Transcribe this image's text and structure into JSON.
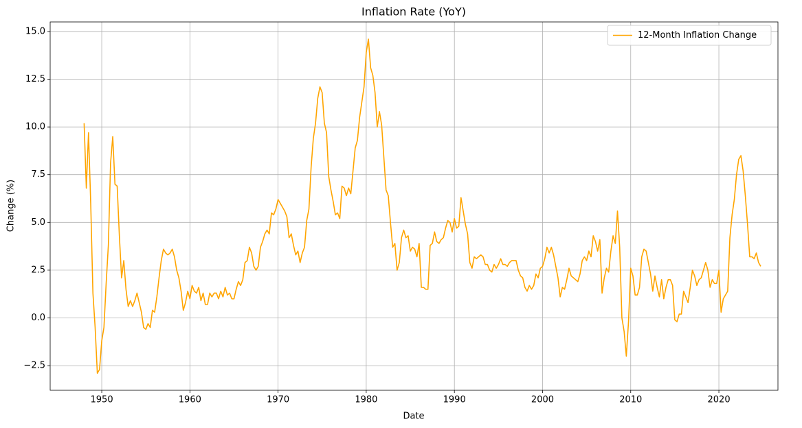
{
  "chart_data": {
    "type": "line",
    "title": "Inflation Rate (YoY)",
    "x_label": "Date",
    "y_label": "Change (%)",
    "xlim": [
      1944.15,
      2026.7
    ],
    "ylim": [
      -3.79,
      15.5
    ],
    "xticks": [
      1950,
      1960,
      1970,
      1980,
      1990,
      2000,
      2010,
      2020
    ],
    "yticks": [
      {
        "value": -2.5,
        "label": "−2.5"
      },
      {
        "value": 0,
        "label": "0.0"
      },
      2.5,
      {
        "value": 5,
        "label": "5.0"
      },
      7.5,
      {
        "value": 10,
        "label": "10.0"
      },
      12.5,
      {
        "value": 15,
        "label": "15.0"
      }
    ],
    "grid": true,
    "legend": "upper right",
    "x": [
      1948,
      1948.25,
      1948.5,
      1948.75,
      1949,
      1949.25,
      1949.5,
      1949.75,
      1950,
      1950.25,
      1950.5,
      1950.75,
      1951,
      1951.25,
      1951.5,
      1951.75,
      1952,
      1952.25,
      1952.5,
      1952.75,
      1953,
      1953.25,
      1953.5,
      1953.75,
      1954,
      1954.25,
      1954.5,
      1954.75,
      1955,
      1955.25,
      1955.5,
      1955.75,
      1956,
      1956.25,
      1956.5,
      1956.75,
      1957,
      1957.25,
      1957.5,
      1957.75,
      1958,
      1958.25,
      1958.5,
      1958.75,
      1959,
      1959.25,
      1959.5,
      1959.75,
      1960,
      1960.25,
      1960.5,
      1960.75,
      1961,
      1961.25,
      1961.5,
      1961.75,
      1962,
      1962.25,
      1962.5,
      1962.75,
      1963,
      1963.25,
      1963.5,
      1963.75,
      1964,
      1964.25,
      1964.5,
      1964.75,
      1965,
      1965.25,
      1965.5,
      1965.75,
      1966,
      1966.25,
      1966.5,
      1966.75,
      1967,
      1967.25,
      1967.5,
      1967.75,
      1968,
      1968.25,
      1968.5,
      1968.75,
      1969,
      1969.25,
      1969.5,
      1969.75,
      1970,
      1970.25,
      1970.5,
      1970.75,
      1971,
      1971.25,
      1971.5,
      1971.75,
      1972,
      1972.25,
      1972.5,
      1972.75,
      1973,
      1973.25,
      1973.5,
      1973.75,
      1974,
      1974.25,
      1974.5,
      1974.75,
      1975,
      1975.25,
      1975.5,
      1975.75,
      1976,
      1976.25,
      1976.5,
      1976.75,
      1977,
      1977.25,
      1977.5,
      1977.75,
      1978,
      1978.25,
      1978.5,
      1978.75,
      1979,
      1979.25,
      1979.5,
      1979.75,
      1980,
      1980.25,
      1980.5,
      1980.75,
      1981,
      1981.25,
      1981.5,
      1981.75,
      1982,
      1982.25,
      1982.5,
      1982.75,
      1983,
      1983.25,
      1983.5,
      1983.75,
      1984,
      1984.25,
      1984.5,
      1984.75,
      1985,
      1985.25,
      1985.5,
      1985.75,
      1986,
      1986.25,
      1986.5,
      1986.75,
      1987,
      1987.25,
      1987.5,
      1987.75,
      1988,
      1988.25,
      1988.5,
      1988.75,
      1989,
      1989.25,
      1989.5,
      1989.75,
      1990,
      1990.25,
      1990.5,
      1990.75,
      1991,
      1991.25,
      1991.5,
      1991.75,
      1992,
      1992.25,
      1992.5,
      1992.75,
      1993,
      1993.25,
      1993.5,
      1993.75,
      1994,
      1994.25,
      1994.5,
      1994.75,
      1995,
      1995.25,
      1995.5,
      1995.75,
      1996,
      1996.25,
      1996.5,
      1996.75,
      1997,
      1997.25,
      1997.5,
      1997.75,
      1998,
      1998.25,
      1998.5,
      1998.75,
      1999,
      1999.25,
      1999.5,
      1999.75,
      2000,
      2000.25,
      2000.5,
      2000.75,
      2001,
      2001.25,
      2001.5,
      2001.75,
      2002,
      2002.25,
      2002.5,
      2002.75,
      2003,
      2003.25,
      2003.5,
      2003.75,
      2004,
      2004.25,
      2004.5,
      2004.75,
      2005,
      2005.25,
      2005.5,
      2005.75,
      2006,
      2006.25,
      2006.5,
      2006.75,
      2007,
      2007.25,
      2007.5,
      2007.75,
      2008,
      2008.25,
      2008.5,
      2008.75,
      2009,
      2009.25,
      2009.5,
      2009.75,
      2010,
      2010.25,
      2010.5,
      2010.75,
      2011,
      2011.25,
      2011.5,
      2011.75,
      2012,
      2012.25,
      2012.5,
      2012.75,
      2013,
      2013.25,
      2013.5,
      2013.75,
      2014,
      2014.25,
      2014.5,
      2014.75,
      2015,
      2015.25,
      2015.5,
      2015.75,
      2016,
      2016.25,
      2016.5,
      2016.75,
      2017,
      2017.25,
      2017.5,
      2017.75,
      2018,
      2018.25,
      2018.5,
      2018.75,
      2019,
      2019.25,
      2019.5,
      2019.75,
      2020,
      2020.25,
      2020.5,
      2020.75,
      2021,
      2021.25,
      2021.5,
      2021.75,
      2022,
      2022.25,
      2022.5,
      2022.75,
      2023,
      2023.25,
      2023.5,
      2023.75,
      2024,
      2024.25,
      2024.5,
      2024.75
    ],
    "series": [
      {
        "name": "12-Month Inflation Change",
        "color": "#ffa500",
        "values": [
          10.2,
          6.8,
          9.7,
          6.0,
          1.3,
          -0.5,
          -2.9,
          -2.7,
          -1.2,
          -0.5,
          1.8,
          3.8,
          8.1,
          9.5,
          7.0,
          6.9,
          4.3,
          2.1,
          3.0,
          1.5,
          0.6,
          0.9,
          0.6,
          0.9,
          1.3,
          0.8,
          0.3,
          -0.5,
          -0.6,
          -0.3,
          -0.5,
          0.4,
          0.3,
          1.1,
          2.1,
          3.0,
          3.6,
          3.4,
          3.3,
          3.4,
          3.6,
          3.2,
          2.5,
          2.1,
          1.4,
          0.4,
          0.8,
          1.4,
          1.0,
          1.7,
          1.4,
          1.3,
          1.6,
          0.9,
          1.3,
          0.7,
          0.7,
          1.3,
          1.1,
          1.3,
          1.3,
          1.0,
          1.4,
          1.1,
          1.6,
          1.2,
          1.3,
          1.0,
          1.0,
          1.5,
          1.9,
          1.7,
          2.0,
          2.9,
          3.0,
          3.7,
          3.4,
          2.7,
          2.5,
          2.7,
          3.7,
          4.0,
          4.4,
          4.6,
          4.4,
          5.5,
          5.4,
          5.7,
          6.2,
          6.0,
          5.8,
          5.6,
          5.3,
          4.2,
          4.4,
          3.8,
          3.3,
          3.5,
          2.9,
          3.4,
          3.7,
          5.1,
          5.7,
          7.9,
          9.4,
          10.2,
          11.5,
          12.1,
          11.8,
          10.2,
          9.7,
          7.4,
          6.7,
          6.1,
          5.4,
          5.5,
          5.2,
          6.9,
          6.8,
          6.4,
          6.8,
          6.5,
          7.7,
          8.9,
          9.3,
          10.5,
          11.3,
          12.1,
          13.9,
          14.6,
          13.1,
          12.7,
          11.8,
          10.0,
          10.8,
          10.1,
          8.4,
          6.7,
          6.4,
          5.0,
          3.7,
          3.9,
          2.5,
          2.9,
          4.2,
          4.6,
          4.2,
          4.3,
          3.5,
          3.7,
          3.6,
          3.2,
          3.9,
          1.6,
          1.6,
          1.5,
          1.5,
          3.8,
          3.9,
          4.5,
          4.0,
          3.9,
          4.1,
          4.2,
          4.7,
          5.1,
          5.0,
          4.5,
          5.2,
          4.7,
          4.8,
          6.3,
          5.6,
          4.9,
          4.4,
          2.9,
          2.6,
          3.2,
          3.1,
          3.2,
          3.3,
          3.2,
          2.8,
          2.8,
          2.5,
          2.4,
          2.8,
          2.6,
          2.8,
          3.1,
          2.8,
          2.8,
          2.7,
          2.9,
          3.0,
          3.0,
          3.0,
          2.5,
          2.2,
          2.1,
          1.6,
          1.4,
          1.7,
          1.5,
          1.7,
          2.3,
          2.1,
          2.6,
          2.7,
          3.1,
          3.7,
          3.4,
          3.7,
          3.3,
          2.7,
          2.1,
          1.1,
          1.6,
          1.5,
          2.0,
          2.6,
          2.2,
          2.1,
          2.0,
          1.9,
          2.3,
          3.0,
          3.2,
          3.0,
          3.5,
          3.2,
          4.3,
          4.0,
          3.5,
          4.1,
          1.3,
          2.1,
          2.6,
          2.4,
          3.5,
          4.3,
          3.9,
          5.6,
          3.7,
          0.0,
          -0.7,
          -2.0,
          -0.2,
          2.6,
          2.2,
          1.2,
          1.2,
          1.6,
          3.2,
          3.6,
          3.5,
          2.9,
          2.3,
          1.4,
          2.2,
          1.6,
          1.1,
          2.0,
          1.0,
          1.6,
          2.0,
          2.0,
          1.7,
          -0.1,
          -0.2,
          0.2,
          0.2,
          1.4,
          1.1,
          0.8,
          1.6,
          2.5,
          2.2,
          1.7,
          2.0,
          2.1,
          2.5,
          2.9,
          2.5,
          1.6,
          2.0,
          1.8,
          1.8,
          2.5,
          0.3,
          1.0,
          1.2,
          1.4,
          4.2,
          5.4,
          6.2,
          7.5,
          8.3,
          8.5,
          7.7,
          6.4,
          4.9,
          3.2,
          3.2,
          3.1,
          3.4,
          2.9,
          2.7
        ]
      }
    ]
  }
}
